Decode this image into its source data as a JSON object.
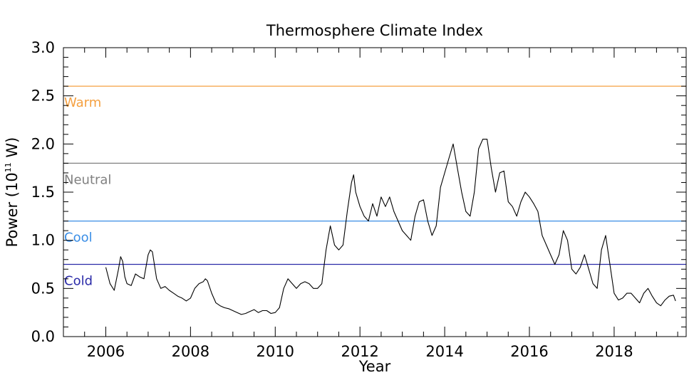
{
  "chart_data": {
    "type": "line",
    "title": "Thermosphere Climate Index",
    "xlabel": "Year",
    "ylabel_main": "Power (10",
    "ylabel_exp": "11",
    "ylabel_tail": " W)",
    "xlim": [
      2005,
      2019.7
    ],
    "ylim": [
      0.0,
      3.0
    ],
    "x_ticks": [
      2006,
      2008,
      2010,
      2012,
      2014,
      2016,
      2018
    ],
    "x_tick_labels": [
      "2006",
      "2008",
      "2010",
      "2012",
      "2014",
      "2016",
      "2018"
    ],
    "y_ticks": [
      0.0,
      0.5,
      1.0,
      1.5,
      2.0,
      2.5,
      3.0
    ],
    "y_tick_labels": [
      "0.0",
      "0.5",
      "1.0",
      "1.5",
      "2.0",
      "2.5",
      "3.0"
    ],
    "grid": false,
    "reference_lines": [
      {
        "label": "Warm",
        "value": 2.6,
        "color": "#f5a040"
      },
      {
        "label": "Neutral",
        "value": 1.8,
        "color": "#808080"
      },
      {
        "label": "Cool",
        "value": 1.2,
        "color": "#3a8ee6"
      },
      {
        "label": "Cold",
        "value": 0.75,
        "color": "#2a2aa8"
      }
    ],
    "series": [
      {
        "color": "#000000",
        "x": [
          2006.0,
          2006.1,
          2006.2,
          2006.3,
          2006.35,
          2006.4,
          2006.45,
          2006.5,
          2006.6,
          2006.7,
          2006.8,
          2006.9,
          2007.0,
          2007.05,
          2007.1,
          2007.2,
          2007.3,
          2007.4,
          2007.5,
          2007.6,
          2007.7,
          2007.8,
          2007.9,
          2008.0,
          2008.1,
          2008.2,
          2008.3,
          2008.35,
          2008.4,
          2008.5,
          2008.6,
          2008.7,
          2008.8,
          2008.9,
          2009.0,
          2009.1,
          2009.2,
          2009.3,
          2009.4,
          2009.5,
          2009.6,
          2009.7,
          2009.8,
          2009.9,
          2010.0,
          2010.1,
          2010.2,
          2010.3,
          2010.4,
          2010.5,
          2010.6,
          2010.7,
          2010.8,
          2010.9,
          2011.0,
          2011.1,
          2011.2,
          2011.3,
          2011.4,
          2011.5,
          2011.6,
          2011.7,
          2011.8,
          2011.85,
          2011.9,
          2012.0,
          2012.1,
          2012.2,
          2012.3,
          2012.4,
          2012.5,
          2012.6,
          2012.7,
          2012.8,
          2012.9,
          2013.0,
          2013.1,
          2013.2,
          2013.3,
          2013.4,
          2013.5,
          2013.6,
          2013.7,
          2013.8,
          2013.9,
          2014.0,
          2014.1,
          2014.2,
          2014.3,
          2014.4,
          2014.5,
          2014.6,
          2014.7,
          2014.8,
          2014.9,
          2015.0,
          2015.1,
          2015.2,
          2015.3,
          2015.4,
          2015.5,
          2015.6,
          2015.7,
          2015.8,
          2015.9,
          2016.0,
          2016.1,
          2016.2,
          2016.3,
          2016.4,
          2016.5,
          2016.6,
          2016.7,
          2016.8,
          2016.9,
          2017.0,
          2017.1,
          2017.2,
          2017.3,
          2017.4,
          2017.5,
          2017.6,
          2017.7,
          2017.8,
          2017.9,
          2018.0,
          2018.1,
          2018.2,
          2018.3,
          2018.4,
          2018.5,
          2018.6,
          2018.7,
          2018.8,
          2018.9,
          2019.0,
          2019.1,
          2019.2,
          2019.3,
          2019.4,
          2019.45
        ],
        "y": [
          0.72,
          0.55,
          0.48,
          0.7,
          0.83,
          0.78,
          0.62,
          0.55,
          0.53,
          0.65,
          0.62,
          0.6,
          0.85,
          0.9,
          0.88,
          0.6,
          0.5,
          0.52,
          0.48,
          0.45,
          0.42,
          0.4,
          0.37,
          0.4,
          0.5,
          0.55,
          0.57,
          0.6,
          0.58,
          0.45,
          0.35,
          0.32,
          0.3,
          0.29,
          0.27,
          0.25,
          0.23,
          0.24,
          0.26,
          0.28,
          0.25,
          0.27,
          0.27,
          0.24,
          0.25,
          0.3,
          0.5,
          0.6,
          0.55,
          0.5,
          0.55,
          0.57,
          0.55,
          0.5,
          0.5,
          0.55,
          0.9,
          1.15,
          0.95,
          0.9,
          0.95,
          1.3,
          1.6,
          1.68,
          1.5,
          1.35,
          1.25,
          1.2,
          1.38,
          1.25,
          1.45,
          1.35,
          1.45,
          1.3,
          1.2,
          1.1,
          1.05,
          1.0,
          1.25,
          1.4,
          1.42,
          1.2,
          1.05,
          1.15,
          1.55,
          1.7,
          1.85,
          2.0,
          1.75,
          1.5,
          1.3,
          1.25,
          1.5,
          1.95,
          2.05,
          2.05,
          1.75,
          1.5,
          1.7,
          1.72,
          1.4,
          1.35,
          1.25,
          1.4,
          1.5,
          1.45,
          1.38,
          1.3,
          1.05,
          0.95,
          0.85,
          0.75,
          0.85,
          1.1,
          1.0,
          0.7,
          0.65,
          0.72,
          0.85,
          0.7,
          0.55,
          0.5,
          0.9,
          1.05,
          0.75,
          0.45,
          0.38,
          0.4,
          0.45,
          0.45,
          0.4,
          0.35,
          0.45,
          0.5,
          0.42,
          0.35,
          0.32,
          0.38,
          0.42,
          0.43,
          0.37
        ]
      }
    ]
  }
}
